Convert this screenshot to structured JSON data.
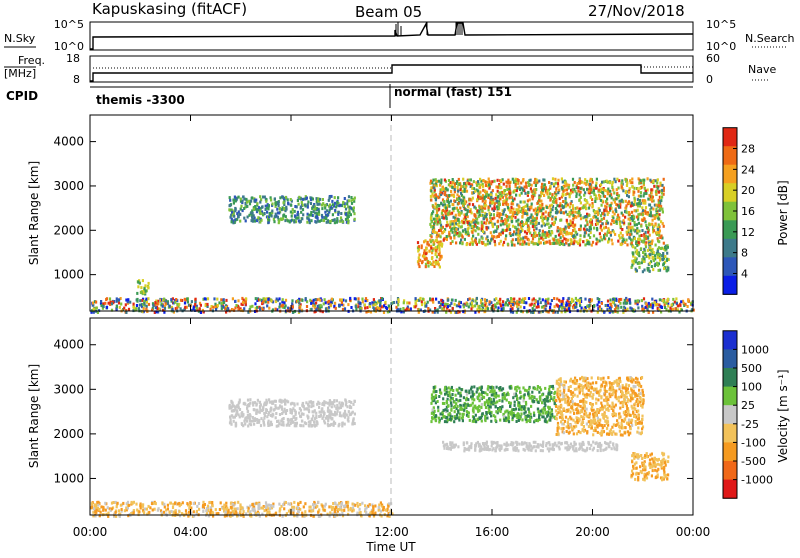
{
  "header": {
    "station": "Kapuskasing (fitACF)",
    "beam": "Beam 05",
    "date": "27/Nov/2018"
  },
  "top_panels": {
    "nsky_label": "N.Sky",
    "nsky_ticks": [
      "10^5",
      "10^0"
    ],
    "nsearch_label": "N.Search",
    "nsearch_ticks": [
      "10^5",
      "10^0"
    ],
    "freq_label_1": "Freq.",
    "freq_label_2": "[MHz]",
    "freq_ticks": [
      "18",
      "8"
    ],
    "nave_label": "Nave",
    "nave_ticks": [
      "60",
      "0"
    ],
    "cpid_label": "CPID",
    "cpid_segments": [
      "themis -3300",
      "normal (fast) 151"
    ]
  },
  "x_axis": {
    "ticks": [
      "00:00",
      "04:00",
      "08:00",
      "12:00",
      "16:00",
      "20:00",
      "00:00"
    ],
    "label": "Time UT"
  },
  "panels": {
    "power": {
      "ylabel": "Slant Range [km]",
      "yticks": [
        "4000",
        "3000",
        "2000",
        "1000"
      ],
      "colorbar_label": "Power [dB]",
      "colorbar_ticks": [
        "28",
        "24",
        "20",
        "16",
        "12",
        "8",
        "4"
      ]
    },
    "velocity": {
      "ylabel": "Slant Range [km]",
      "yticks": [
        "4000",
        "3000",
        "2000",
        "1000"
      ],
      "colorbar_label": "Velocity [m s⁻¹]",
      "colorbar_ticks": [
        "1000",
        "500",
        "100",
        "25",
        "-25",
        "-100",
        "-500",
        "-1000"
      ]
    }
  },
  "colors": {
    "power_scale": [
      "#0a1ee6",
      "#2d57b8",
      "#3d7a8a",
      "#3a9a55",
      "#7fc23a",
      "#d8cf25",
      "#f5a020",
      "#ee6a15",
      "#e02814"
    ],
    "velocity_scale": [
      "#1b2fd0",
      "#2a5ca0",
      "#2f7f55",
      "#6cc23a",
      "#c8c8c8",
      "#f2c25a",
      "#f59a20",
      "#f06818",
      "#e01818"
    ]
  },
  "chart_data": [
    {
      "type": "heatmap",
      "title": "Power [dB]",
      "xlabel": "Time UT",
      "ylabel": "Slant Range [km]",
      "xlim_hours": [
        0,
        24
      ],
      "ylim_km": [
        180,
        4600
      ],
      "zlim": [
        0,
        30
      ],
      "regions": [
        {
          "t": [
            0,
            24
          ],
          "r": [
            180,
            500
          ],
          "z": "mixed 4-28 (ground scatter / noise band)"
        },
        {
          "t": [
            1.8,
            2.3
          ],
          "r": [
            550,
            900
          ],
          "z": [
            12,
            20
          ]
        },
        {
          "t": [
            5.5,
            10.5
          ],
          "r": [
            2200,
            2800
          ],
          "z": [
            4,
            16
          ]
        },
        {
          "t": [
            13.5,
            22.8
          ],
          "r": [
            1700,
            3200
          ],
          "z": [
            8,
            28
          ]
        },
        {
          "t": [
            13.0,
            14.0
          ],
          "r": [
            1200,
            1800
          ],
          "z": [
            16,
            28
          ]
        },
        {
          "t": [
            21.5,
            23.0
          ],
          "r": [
            1100,
            1700
          ],
          "z": [
            8,
            20
          ]
        }
      ]
    },
    {
      "type": "heatmap",
      "title": "Velocity [m s⁻¹]",
      "xlabel": "Time UT",
      "ylabel": "Slant Range [km]",
      "xlim_hours": [
        0,
        24
      ],
      "ylim_km": [
        180,
        4600
      ],
      "zlim": [
        -1000,
        1000
      ],
      "regions": [
        {
          "t": [
            0,
            12
          ],
          "r": [
            180,
            500
          ],
          "z": [
            -500,
            25
          ]
        },
        {
          "t": [
            5.5,
            10.5
          ],
          "r": [
            2200,
            2800
          ],
          "z": [
            -25,
            25
          ]
        },
        {
          "t": [
            13.5,
            18.5
          ],
          "r": [
            2300,
            3100
          ],
          "z": [
            100,
            500
          ]
        },
        {
          "t": [
            18.5,
            22.0
          ],
          "r": [
            2000,
            3300
          ],
          "z": [
            -500,
            -100
          ]
        },
        {
          "t": [
            14.0,
            21.0
          ],
          "r": [
            1650,
            1850
          ],
          "z": [
            -25,
            25
          ]
        },
        {
          "t": [
            21.5,
            23.0
          ],
          "r": [
            1000,
            1600
          ],
          "z": [
            -500,
            -100
          ]
        }
      ]
    }
  ]
}
